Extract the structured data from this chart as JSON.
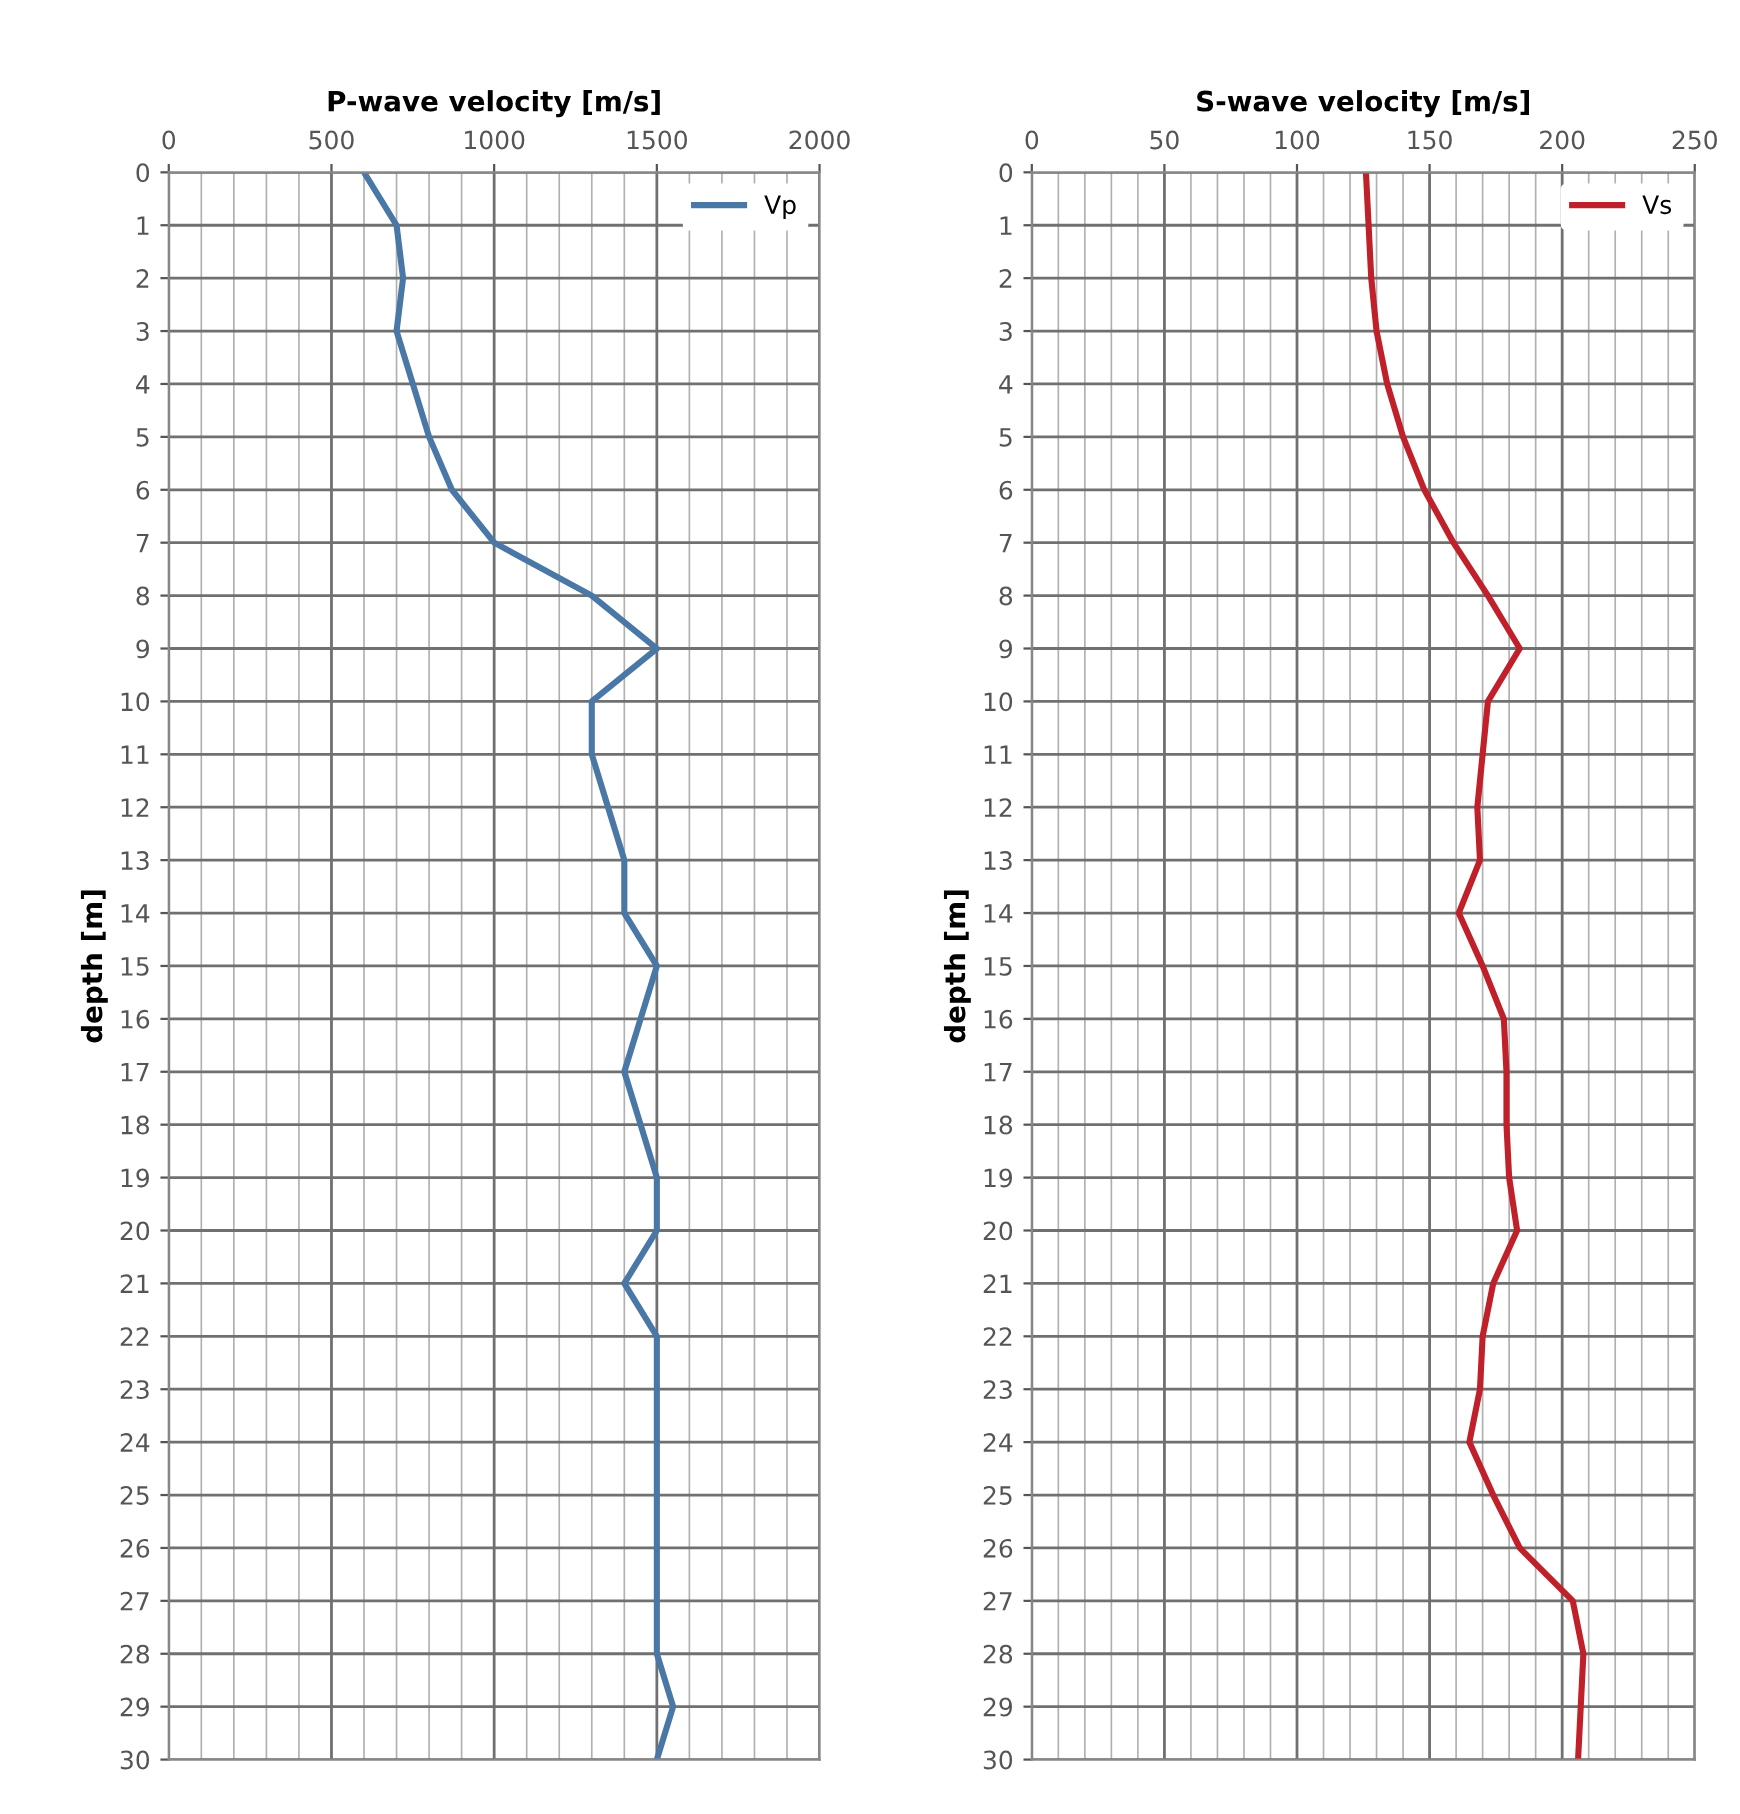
{
  "chart_data": [
    {
      "type": "line",
      "title": "P-wave velocity [m/s]",
      "ylabel": "depth [m]",
      "orientation": "horizontal",
      "x": [
        0,
        1,
        2,
        3,
        4,
        5,
        6,
        7,
        8,
        9,
        10,
        11,
        12,
        13,
        14,
        15,
        16,
        17,
        18,
        19,
        20,
        21,
        22,
        23,
        24,
        25,
        26,
        27,
        28,
        29,
        30
      ],
      "series": [
        {
          "name": "Vp",
          "color": "#4a78a6",
          "values": [
            600,
            700,
            720,
            700,
            750,
            800,
            870,
            1000,
            1300,
            1500,
            1300,
            1300,
            1350,
            1400,
            1400,
            1500,
            1450,
            1400,
            1450,
            1500,
            1500,
            1400,
            1500,
            1500,
            1500,
            1500,
            1500,
            1500,
            1500,
            1550,
            1500
          ]
        }
      ],
      "xlim": [
        0,
        2000
      ],
      "xticks": [
        0,
        500,
        1000,
        1500,
        2000
      ],
      "ylim": [
        30,
        0
      ],
      "yticks": [
        0,
        1,
        2,
        3,
        4,
        5,
        6,
        7,
        8,
        9,
        10,
        11,
        12,
        13,
        14,
        15,
        16,
        17,
        18,
        19,
        20,
        21,
        22,
        23,
        24,
        25,
        26,
        27,
        28,
        29,
        30
      ],
      "grid": true,
      "legend": "top right",
      "marker": "none",
      "line_style": "solid"
    },
    {
      "type": "line",
      "title": "S-wave velocity [m/s]",
      "ylabel": "depth [m]",
      "orientation": "horizontal",
      "x": [
        0,
        1,
        2,
        3,
        4,
        5,
        6,
        7,
        8,
        9,
        10,
        11,
        12,
        13,
        14,
        15,
        16,
        17,
        18,
        19,
        20,
        21,
        22,
        23,
        24,
        25,
        26,
        27,
        28,
        29,
        30
      ],
      "series": [
        {
          "name": "Vs",
          "color": "#c0202a",
          "values": [
            126,
            127,
            128,
            130,
            134,
            140,
            148,
            159,
            172,
            184,
            172,
            170,
            168,
            169,
            161,
            170,
            178,
            179,
            179,
            180,
            183,
            174,
            170,
            169,
            165,
            174,
            184,
            204,
            208,
            207,
            206
          ]
        }
      ],
      "xlim": [
        0,
        250
      ],
      "xticks": [
        0,
        50,
        100,
        150,
        200,
        250
      ],
      "ylim": [
        30,
        0
      ],
      "yticks": [
        0,
        1,
        2,
        3,
        4,
        5,
        6,
        7,
        8,
        9,
        10,
        11,
        12,
        13,
        14,
        15,
        16,
        17,
        18,
        19,
        20,
        21,
        22,
        23,
        24,
        25,
        26,
        27,
        28,
        29,
        30
      ],
      "grid": true,
      "legend": "top right",
      "marker": "none",
      "line_style": "solid"
    }
  ]
}
